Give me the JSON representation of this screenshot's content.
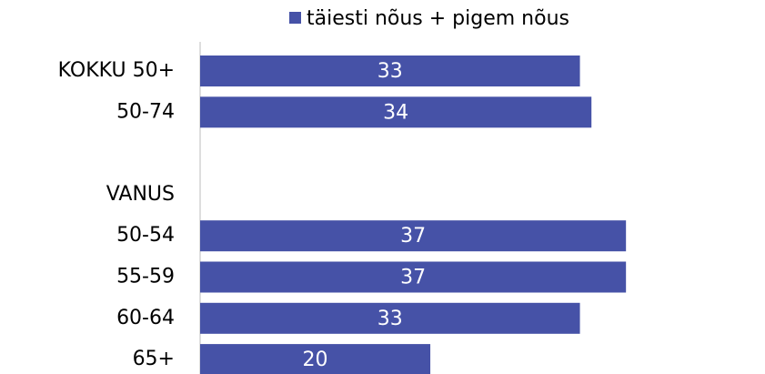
{
  "chart_data": {
    "type": "hbar",
    "categories": [
      "KOKKU 50+",
      "50-74",
      null,
      "VANUS",
      "50-54",
      "55-59",
      "60-64",
      "65+"
    ],
    "series": [
      {
        "name": "täiesti nõus + pigem nõus",
        "color": "#4652a7",
        "values": [
          33,
          34,
          null,
          null,
          37,
          37,
          33,
          20
        ]
      }
    ],
    "xlim": [
      0,
      49
    ],
    "legend": "top"
  }
}
